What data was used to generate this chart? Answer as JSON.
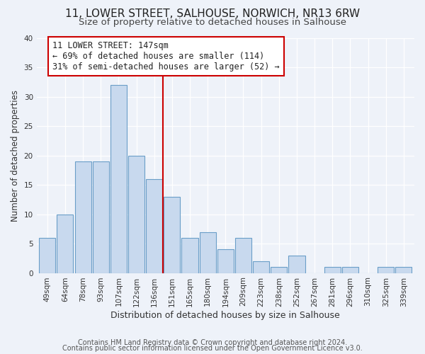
{
  "title": "11, LOWER STREET, SALHOUSE, NORWICH, NR13 6RW",
  "subtitle": "Size of property relative to detached houses in Salhouse",
  "xlabel": "Distribution of detached houses by size in Salhouse",
  "ylabel": "Number of detached properties",
  "bar_labels": [
    "49sqm",
    "64sqm",
    "78sqm",
    "93sqm",
    "107sqm",
    "122sqm",
    "136sqm",
    "151sqm",
    "165sqm",
    "180sqm",
    "194sqm",
    "209sqm",
    "223sqm",
    "238sqm",
    "252sqm",
    "267sqm",
    "281sqm",
    "296sqm",
    "310sqm",
    "325sqm",
    "339sqm"
  ],
  "bar_heights": [
    6,
    10,
    19,
    19,
    32,
    20,
    16,
    13,
    6,
    7,
    4,
    6,
    2,
    1,
    3,
    0,
    1,
    1,
    0,
    1,
    1
  ],
  "bar_color": "#c8d9ee",
  "bar_edge_color": "#6a9ec8",
  "vline_x_index": 7,
  "vline_color": "#cc0000",
  "annotation_lines": [
    "11 LOWER STREET: 147sqm",
    "← 69% of detached houses are smaller (114)",
    "31% of semi-detached houses are larger (52) →"
  ],
  "annotation_box_color": "#ffffff",
  "annotation_box_edge_color": "#cc0000",
  "ylim": [
    0,
    40
  ],
  "yticks": [
    0,
    5,
    10,
    15,
    20,
    25,
    30,
    35,
    40
  ],
  "background_color": "#eef2f9",
  "grid_color": "#ffffff",
  "footer_lines": [
    "Contains HM Land Registry data © Crown copyright and database right 2024.",
    "Contains public sector information licensed under the Open Government Licence v3.0."
  ],
  "title_fontsize": 11,
  "subtitle_fontsize": 9.5,
  "xlabel_fontsize": 9,
  "ylabel_fontsize": 8.5,
  "tick_fontsize": 7.5,
  "annotation_fontsize": 8.5,
  "footer_fontsize": 7
}
